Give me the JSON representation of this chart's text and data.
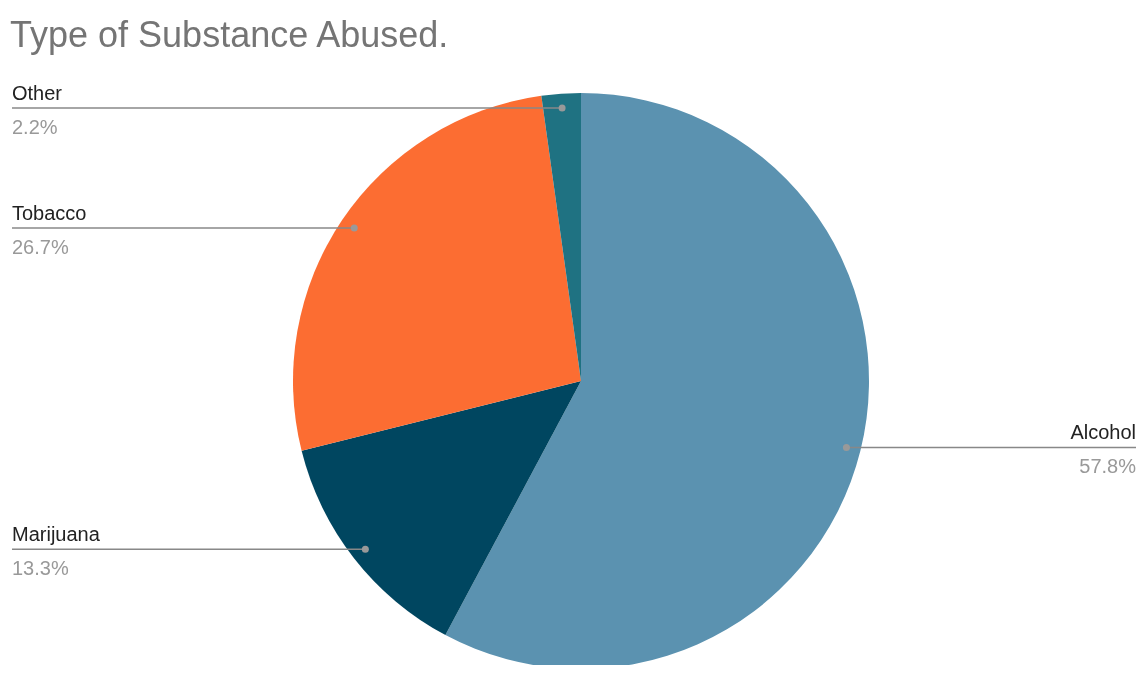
{
  "chart_data": {
    "type": "pie",
    "title": "Type of Substance Abused.",
    "categories": [
      "Alcohol",
      "Marijuana",
      "Tobacco",
      "Other"
    ],
    "values": [
      57.8,
      13.3,
      26.7,
      2.2
    ],
    "value_labels": [
      "57.8%",
      "13.3%",
      "26.7%",
      "2.2%"
    ],
    "colors": [
      "#5b92b0",
      "#004660",
      "#fc6d32",
      "#1f7282"
    ]
  }
}
